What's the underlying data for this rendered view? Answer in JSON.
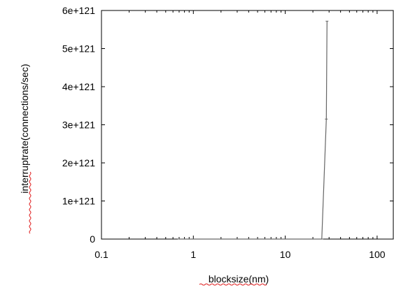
{
  "chart_data": {
    "type": "line",
    "title": "",
    "xlabel": "blocksize(nm)",
    "ylabel": "interruptrate(connections/sec)",
    "x_scale": "log",
    "xlim": [
      0.1,
      150
    ],
    "ylim": [
      0,
      6e+121
    ],
    "x_ticks": [
      {
        "value": 0.1,
        "label": "0.1"
      },
      {
        "value": 1,
        "label": "1"
      },
      {
        "value": 10,
        "label": "10"
      },
      {
        "value": 100,
        "label": "100"
      }
    ],
    "y_ticks": [
      {
        "value": 0,
        "label": "0"
      },
      {
        "value": 1e+121,
        "label": "1e+121"
      },
      {
        "value": 2e+121,
        "label": "2e+121"
      },
      {
        "value": 3e+121,
        "label": "3e+121"
      },
      {
        "value": 4e+121,
        "label": "4e+121"
      },
      {
        "value": 5e+121,
        "label": "5e+121"
      },
      {
        "value": 6e+121,
        "label": "6e+121"
      }
    ],
    "series": [
      {
        "color": "#666666",
        "x": [
          0.7,
          0.8,
          5.5,
          6.0,
          6.5,
          7.0,
          14.0,
          15.0,
          16.0,
          25.0,
          28.0,
          28.5
        ],
        "y": [
          0,
          0,
          0,
          0,
          0,
          0,
          0,
          0,
          0,
          0,
          3.15e+121,
          5.72e+121
        ]
      }
    ],
    "grid": false
  }
}
